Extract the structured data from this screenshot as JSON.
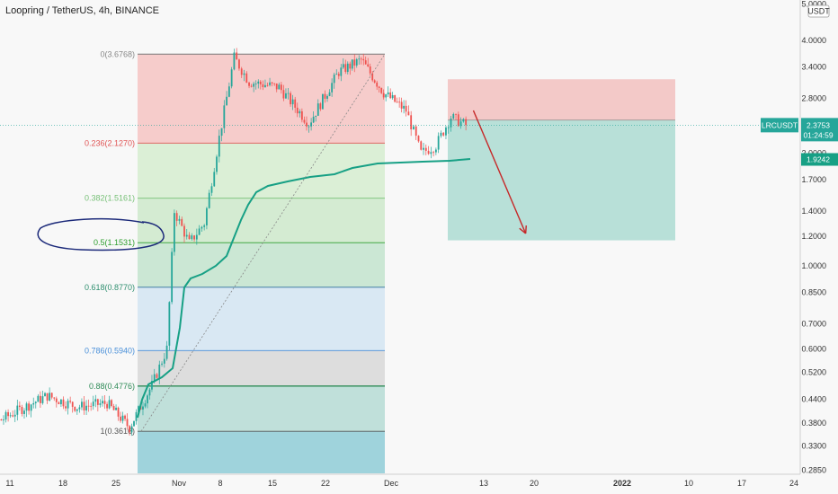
{
  "header": {
    "title": "Loopring / TetherUS, 4h, BINANCE"
  },
  "axis": {
    "currency_badge": "USDT",
    "y_ticks": [
      "5.0000",
      "4.0000",
      "3.4000",
      "2.8000",
      "2.0000",
      "1.7000",
      "1.4000",
      "1.2000",
      "1.0000",
      "0.8500",
      "0.7000",
      "0.6000",
      "0.5200",
      "0.4400",
      "0.3800",
      "0.3300",
      "0.2850"
    ],
    "x_ticks": [
      "11",
      "18",
      "25",
      "Nov",
      "8",
      "15",
      "22",
      "Dec",
      "13",
      "20",
      "2022",
      "10",
      "17",
      "24"
    ]
  },
  "price_badges": {
    "symbol": "LRCUSDT",
    "price": "2.3753",
    "countdown": "01:24:59",
    "ma_value": "1.9242"
  },
  "fib_levels": [
    {
      "label": "0(3.6768)",
      "value": 3.6768
    },
    {
      "label": "0.236(2.1270)",
      "value": 2.127
    },
    {
      "label": "0.382(1.5161)",
      "value": 1.5161
    },
    {
      "label": "0.5(1.1531)",
      "value": 1.1531
    },
    {
      "label": "0.618(0.8770)",
      "value": 0.877
    },
    {
      "label": "0.786(0.5940)",
      "value": 0.594
    },
    {
      "label": "0.88(0.4776)",
      "value": 0.4776
    },
    {
      "label": "1(0.3616)",
      "value": 0.3616
    }
  ],
  "colors": {
    "fib_text": [
      "#888888",
      "#e05555",
      "#77c077",
      "#2e9e2e",
      "#2f8f6f",
      "#4a90d9",
      "#2e8b57",
      "#555555"
    ],
    "up": "#26a69a",
    "down": "#ef5350",
    "ma": "#17a085",
    "arrow": "#c62828"
  },
  "chart_data": {
    "type": "candlestick",
    "symbol": "LRCUSDT",
    "timeframe": "4h",
    "y_scale": "log",
    "current_price": 2.3753,
    "moving_average_last": 1.9242,
    "close_path": [
      {
        "date": "2021-10-04",
        "close": 0.4
      },
      {
        "date": "2021-10-08",
        "close": 0.37
      },
      {
        "date": "2021-10-12",
        "close": 0.41
      },
      {
        "date": "2021-10-16",
        "close": 0.45
      },
      {
        "date": "2021-10-20",
        "close": 0.42
      },
      {
        "date": "2021-10-24",
        "close": 0.43
      },
      {
        "date": "2021-10-27",
        "close": 0.37
      },
      {
        "date": "2021-10-30",
        "close": 0.48
      },
      {
        "date": "2021-11-01",
        "close": 0.6
      },
      {
        "date": "2021-11-02",
        "close": 1.4
      },
      {
        "date": "2021-11-04",
        "close": 1.15
      },
      {
        "date": "2021-11-06",
        "close": 1.3
      },
      {
        "date": "2021-11-08",
        "close": 2.2
      },
      {
        "date": "2021-11-10",
        "close": 3.6
      },
      {
        "date": "2021-11-12",
        "close": 3.1
      },
      {
        "date": "2021-11-16",
        "close": 3.0
      },
      {
        "date": "2021-11-20",
        "close": 2.4
      },
      {
        "date": "2021-11-24",
        "close": 3.3
      },
      {
        "date": "2021-11-27",
        "close": 3.55
      },
      {
        "date": "2021-11-30",
        "close": 2.9
      },
      {
        "date": "2021-12-03",
        "close": 2.6
      },
      {
        "date": "2021-12-05",
        "close": 2.0
      },
      {
        "date": "2021-12-07",
        "close": 2.1
      },
      {
        "date": "2021-12-09",
        "close": 2.5
      },
      {
        "date": "2021-12-11",
        "close": 2.3753
      }
    ],
    "position": {
      "stop": 3.15,
      "entry": 2.45,
      "target": 1.17
    },
    "arrow": {
      "from": {
        "date": "2021-12-12",
        "value": 2.6
      },
      "to": {
        "date": "2021-12-19",
        "value": 1.22
      }
    }
  }
}
